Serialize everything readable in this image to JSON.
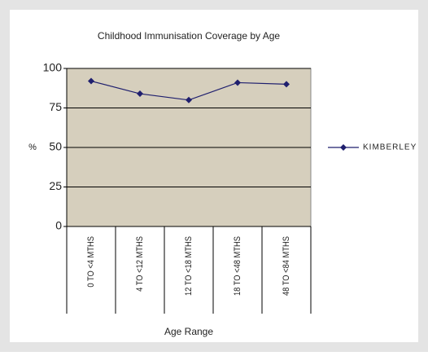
{
  "chart_data": {
    "type": "line",
    "title": "Childhood Immunisation Coverage by Age",
    "x_label": "Age Range",
    "y_label": "%",
    "categories": [
      "0 TO <4 MTHS",
      "4 TO <12 MTHS",
      "12 TO <18 MTHS",
      "18 TO <48 MTHS",
      "48 TO <84 MTHS"
    ],
    "series": [
      {
        "name": "KIMBERLEY",
        "color": "#1f1f6e",
        "values": [
          92,
          84,
          80,
          91,
          90
        ]
      }
    ],
    "ylim": [
      0,
      100
    ],
    "yticks": [
      0,
      25,
      50,
      75,
      100
    ],
    "grid": true,
    "legend": "right",
    "plot_color": "#d6cfbd"
  }
}
